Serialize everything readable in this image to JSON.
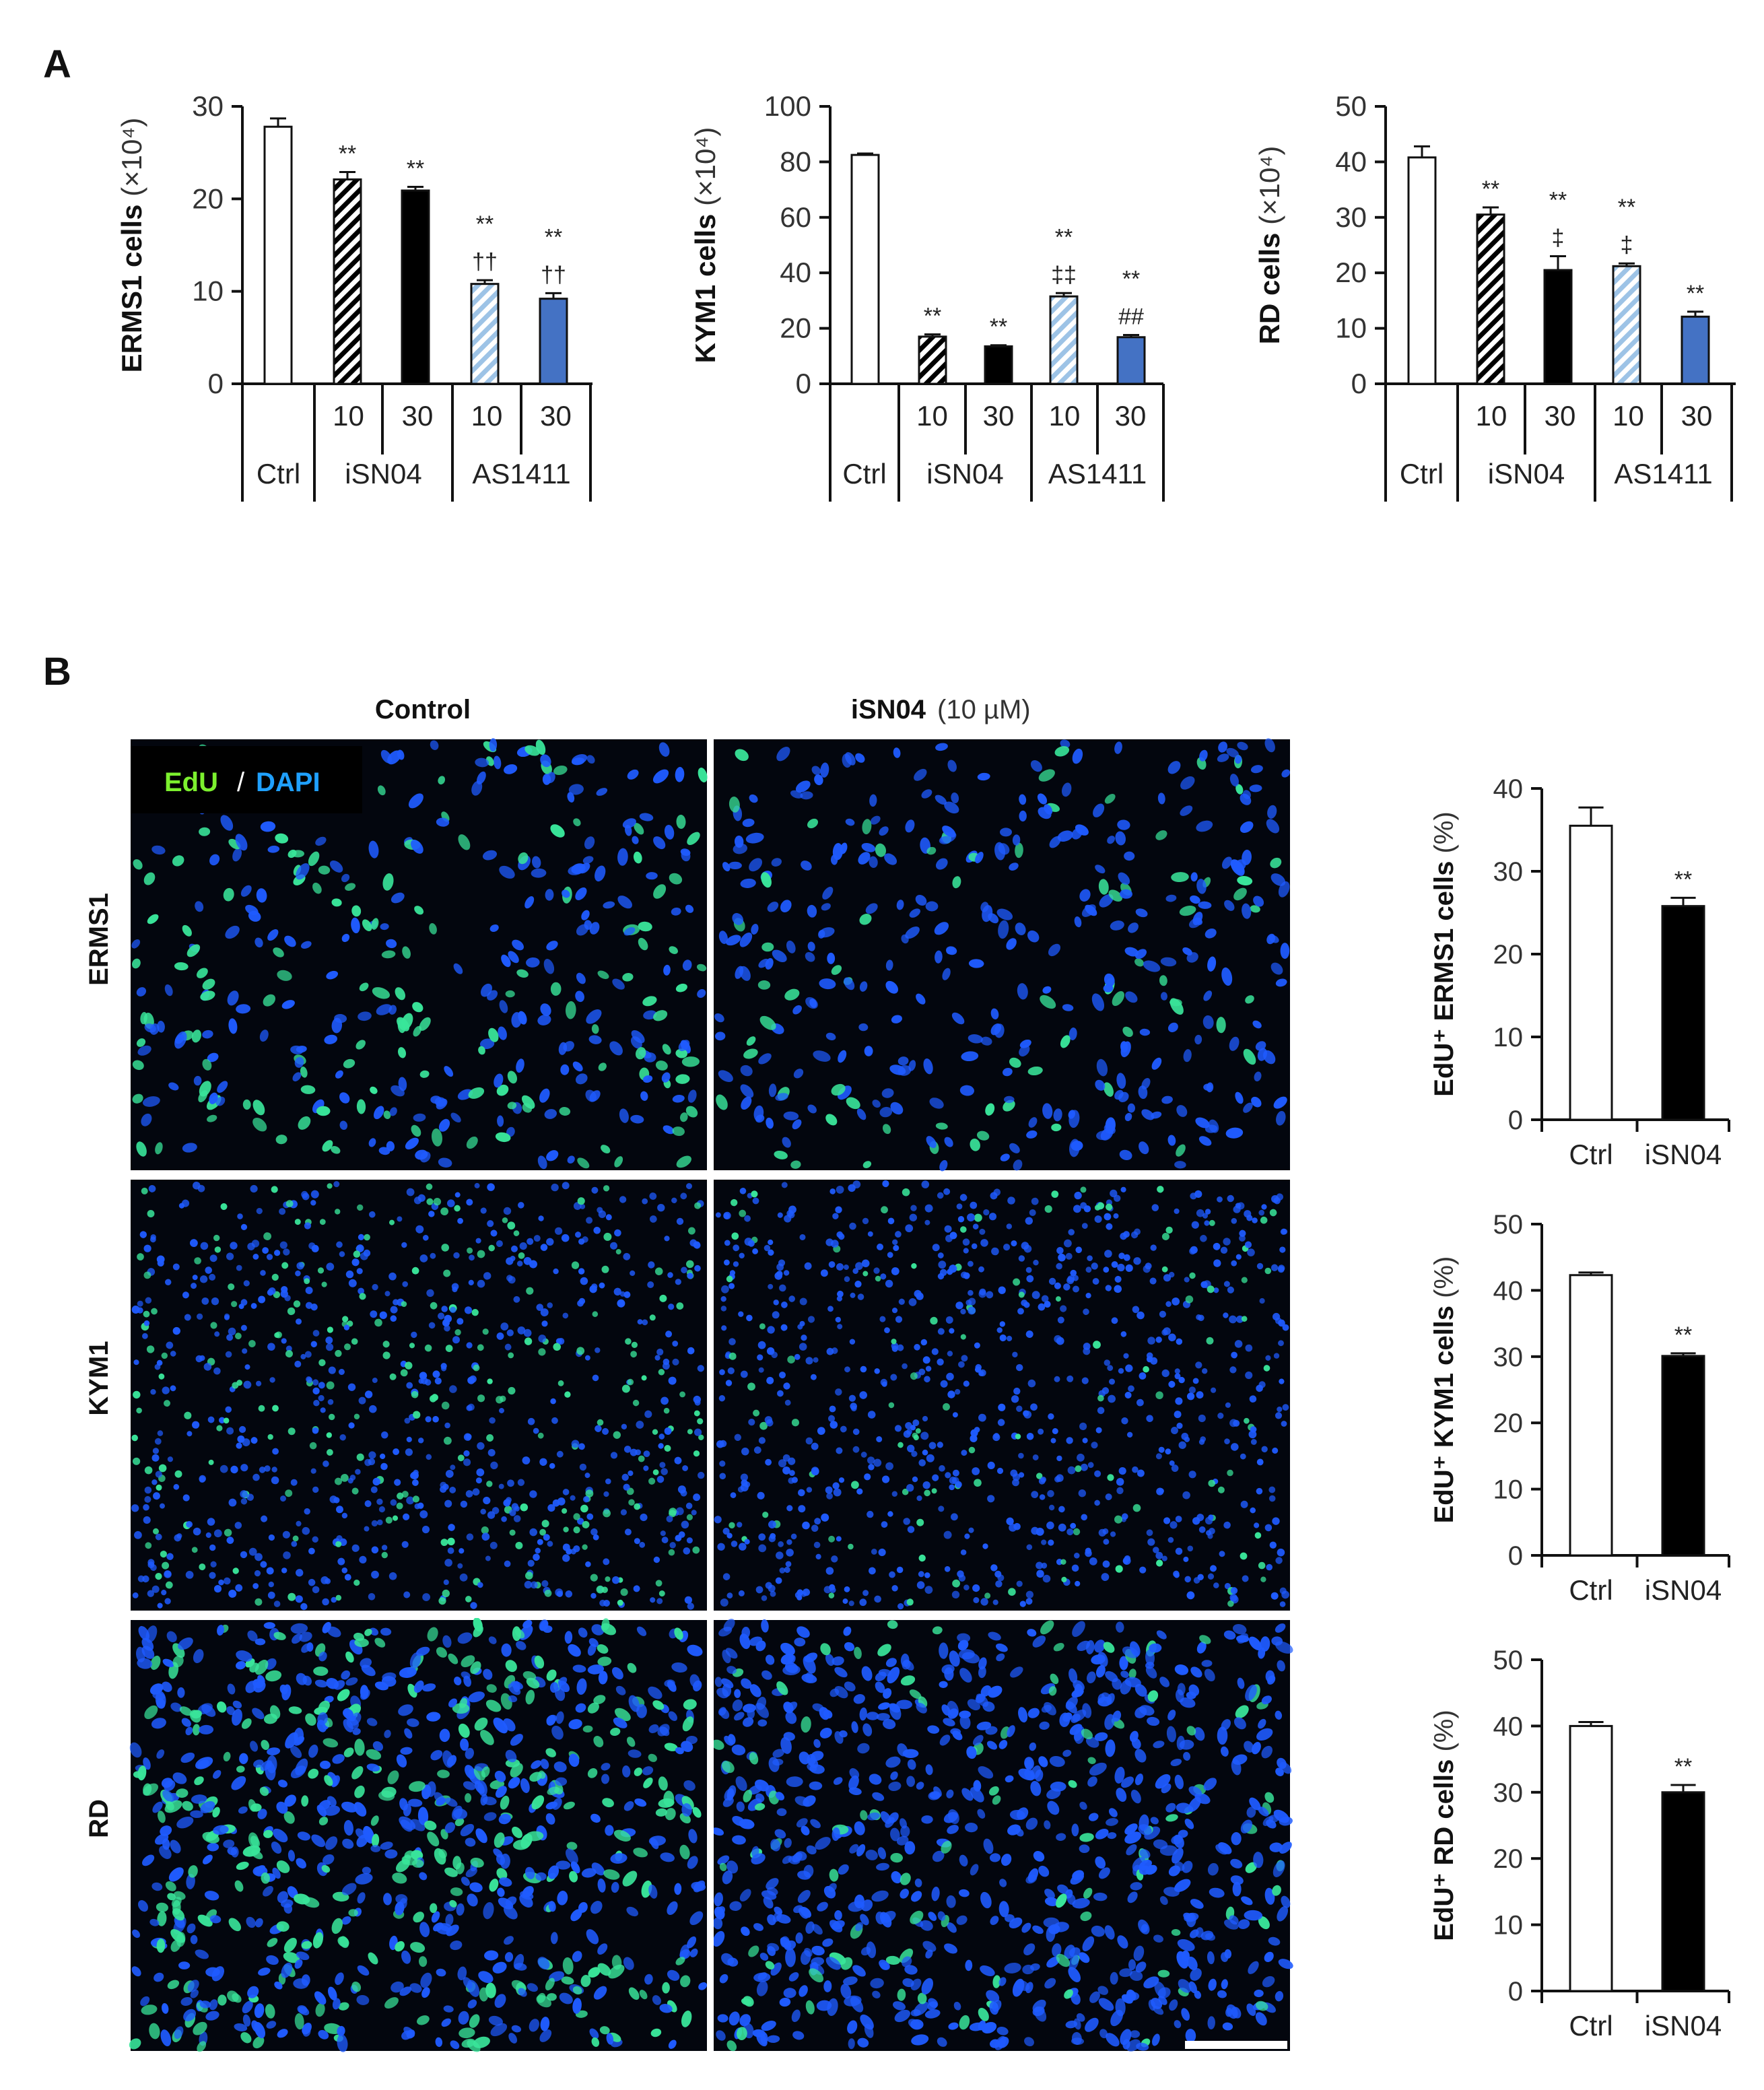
{
  "panels": {
    "a": "A",
    "b": "B"
  },
  "panel_b": {
    "col_control": "Control",
    "col_treat_bold": "iSN04",
    "col_treat_dose": "(10 µM)",
    "legend_edu": "EdU",
    "legend_sep": "/",
    "legend_dapi": "DAPI",
    "row_labels": [
      "ERMS1",
      "KYM1",
      "RD"
    ]
  },
  "colors": {
    "ctrl": "#ffffff",
    "isn04": "#000000",
    "as1411_30": "#4472c4",
    "as1411_10": "#9dc3e6",
    "edu": "#39e59a",
    "dapi": "#1f5bff",
    "micrograph_bg": "#03060e"
  },
  "chart_data": [
    {
      "id": "ERMS1-count",
      "type": "bar",
      "ylabel_main": "ERMS1 cells",
      "ylabel_unit": "(×10⁴)",
      "ylim": [
        0,
        30
      ],
      "yticks": [
        "0",
        "10",
        "20",
        "30"
      ],
      "dose_labels": [
        "10",
        "30",
        "10",
        "30"
      ],
      "group_labels": [
        "Ctrl",
        "iSN04",
        "AS1411"
      ],
      "values": [
        27.8,
        22.1,
        20.9,
        10.8,
        9.2
      ],
      "errors": [
        0.9,
        0.8,
        0.4,
        0.4,
        0.6
      ],
      "fills": [
        "white",
        "hatch-black",
        "black",
        "hatch-blue",
        "blue"
      ],
      "annotations": [
        [],
        [
          "**"
        ],
        [
          "**"
        ],
        [
          "**",
          "††"
        ],
        [
          "**",
          "††"
        ]
      ]
    },
    {
      "id": "KYM1-count",
      "type": "bar",
      "ylabel_main": "KYM1 cells",
      "ylabel_unit": "(×10⁴)",
      "ylim": [
        0,
        100
      ],
      "yticks": [
        "0",
        "20",
        "40",
        "60",
        "80",
        "100"
      ],
      "dose_labels": [
        "10",
        "30",
        "10",
        "30"
      ],
      "group_labels": [
        "Ctrl",
        "iSN04",
        "AS1411"
      ],
      "values": [
        82.5,
        17.0,
        13.5,
        31.5,
        16.8
      ],
      "errors": [
        0.5,
        0.8,
        0.4,
        1.2,
        0.8
      ],
      "fills": [
        "white",
        "hatch-black",
        "black",
        "hatch-blue",
        "blue"
      ],
      "annotations": [
        [],
        [
          "**"
        ],
        [
          "**"
        ],
        [
          "**",
          "‡‡"
        ],
        [
          "**",
          "##"
        ]
      ]
    },
    {
      "id": "RD-count",
      "type": "bar",
      "ylabel_main": "RD cells",
      "ylabel_unit": "(×10⁴)",
      "ylim": [
        0,
        50
      ],
      "yticks": [
        "0",
        "10",
        "20",
        "30",
        "40",
        "50"
      ],
      "dose_labels": [
        "10",
        "30",
        "10",
        "30"
      ],
      "group_labels": [
        "Ctrl",
        "iSN04",
        "AS1411"
      ],
      "values": [
        40.8,
        30.5,
        20.5,
        21.2,
        12.1
      ],
      "errors": [
        2.0,
        1.3,
        2.5,
        0.5,
        0.9
      ],
      "fills": [
        "white",
        "hatch-black",
        "black",
        "hatch-blue",
        "blue"
      ],
      "annotations": [
        [],
        [
          "**"
        ],
        [
          "**",
          "‡"
        ],
        [
          "**",
          "‡"
        ],
        [
          "**"
        ]
      ]
    },
    {
      "id": "ERMS1-edu",
      "type": "bar",
      "ylabel_main": "EdU⁺ ERMS1 cells",
      "ylabel_unit": "(%)",
      "ylim": [
        0,
        40
      ],
      "yticks": [
        "0",
        "10",
        "20",
        "30",
        "40"
      ],
      "categories": [
        "Ctrl",
        "iSN04"
      ],
      "values": [
        35.5,
        25.8
      ],
      "errors": [
        2.2,
        1.0
      ],
      "fills": [
        "white",
        "black"
      ],
      "annotations": [
        [],
        [
          "**"
        ]
      ]
    },
    {
      "id": "KYM1-edu",
      "type": "bar",
      "ylabel_main": "EdU⁺ KYM1 cells",
      "ylabel_unit": "(%)",
      "ylim": [
        0,
        50
      ],
      "yticks": [
        "0",
        "10",
        "20",
        "30",
        "40",
        "50"
      ],
      "categories": [
        "Ctrl",
        "iSN04"
      ],
      "values": [
        42.3,
        30.1
      ],
      "errors": [
        0.4,
        0.4
      ],
      "fills": [
        "white",
        "black"
      ],
      "annotations": [
        [],
        [
          "**"
        ]
      ]
    },
    {
      "id": "RD-edu",
      "type": "bar",
      "ylabel_main": "EdU⁺ RD cells",
      "ylabel_unit": "(%)",
      "ylim": [
        0,
        50
      ],
      "yticks": [
        "0",
        "10",
        "20",
        "30",
        "40",
        "50"
      ],
      "categories": [
        "Ctrl",
        "iSN04"
      ],
      "values": [
        40.0,
        30.0
      ],
      "errors": [
        0.6,
        1.1
      ],
      "fills": [
        "white",
        "black"
      ],
      "annotations": [
        [],
        [
          "**"
        ]
      ]
    }
  ]
}
